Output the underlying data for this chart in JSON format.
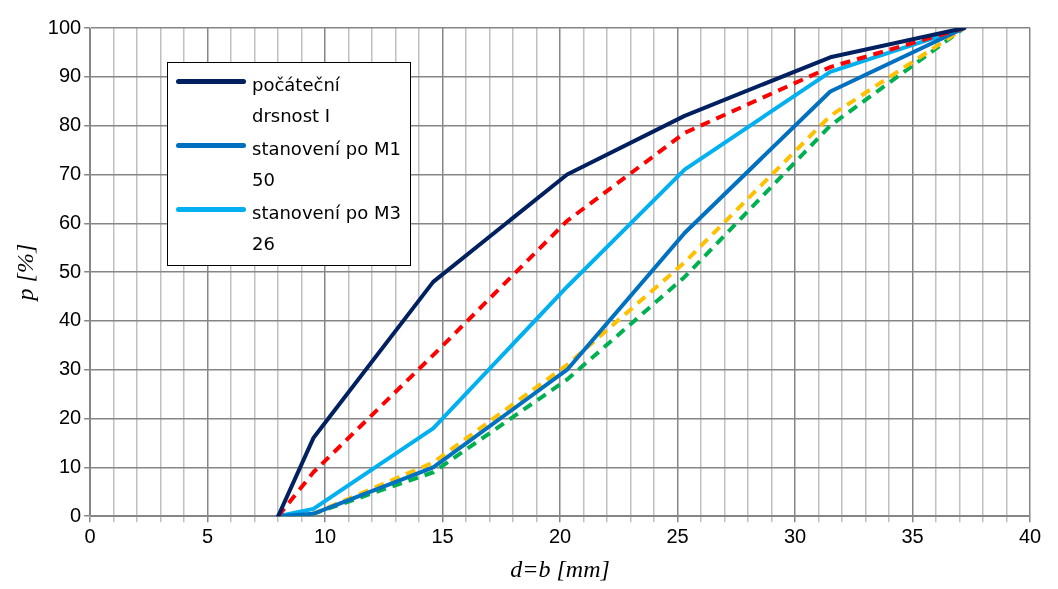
{
  "chart_data": {
    "type": "line",
    "xlabel": "d=b [mm]",
    "ylabel": "p [%]",
    "x": [
      8,
      9.5,
      14.6,
      20.3,
      25.3,
      31.5,
      37.2
    ],
    "series": [
      {
        "name": "počáteční drsnost I",
        "color": "#002060",
        "values": [
          0,
          16,
          48,
          70,
          82,
          94,
          100
        ]
      },
      {
        "color": "#ff0000",
        "line_style": "dashed",
        "values": [
          0,
          9,
          33,
          60.5,
          78.5,
          92,
          100
        ]
      },
      {
        "name": "stanovení po M1 50",
        "color": "#0070c0",
        "values": [
          0,
          0.5,
          10,
          30,
          58,
          87,
          100
        ]
      },
      {
        "name": "stanovení po M3 26",
        "color": "#00b0f0",
        "values": [
          0,
          1.5,
          18,
          47,
          71,
          91,
          100
        ]
      },
      {
        "color": "#ffc000",
        "line_style": "dashed",
        "values": [
          0,
          0.5,
          11,
          31,
          52,
          82,
          100
        ]
      },
      {
        "color": "#00b050",
        "line_style": "dashed",
        "values": [
          0,
          0.5,
          9,
          28,
          49,
          80,
          100
        ]
      }
    ],
    "xlim": [
      0,
      40
    ],
    "xticks": [
      0,
      {
        "value": 1,
        "label": null
      },
      {
        "value": 2,
        "label": null
      },
      {
        "value": 3,
        "label": null
      },
      {
        "value": 4,
        "label": null
      },
      5,
      {
        "value": 6,
        "label": null
      },
      {
        "value": 7,
        "label": null
      },
      {
        "value": 8,
        "label": null
      },
      {
        "value": 9,
        "label": null
      },
      10,
      {
        "value": 11,
        "label": null
      },
      {
        "value": 12,
        "label": null
      },
      {
        "value": 13,
        "label": null
      },
      {
        "value": 14,
        "label": null
      },
      15,
      {
        "value": 16,
        "label": null
      },
      {
        "value": 17,
        "label": null
      },
      {
        "value": 18,
        "label": null
      },
      {
        "value": 19,
        "label": null
      },
      20,
      {
        "value": 21,
        "label": null
      },
      {
        "value": 22,
        "label": null
      },
      {
        "value": 23,
        "label": null
      },
      {
        "value": 24,
        "label": null
      },
      25,
      {
        "value": 26,
        "label": null
      },
      {
        "value": 27,
        "label": null
      },
      {
        "value": 28,
        "label": null
      },
      {
        "value": 29,
        "label": null
      },
      30,
      {
        "value": 31,
        "label": null
      },
      {
        "value": 32,
        "label": null
      },
      {
        "value": 33,
        "label": null
      },
      {
        "value": 34,
        "label": null
      },
      35,
      {
        "value": 36,
        "label": null
      },
      {
        "value": 37,
        "label": null
      },
      {
        "value": 38,
        "label": null
      },
      {
        "value": 39,
        "label": null
      },
      40
    ],
    "ylim": [
      0,
      100
    ],
    "yticks": [
      0,
      10,
      20,
      30,
      40,
      50,
      60,
      70,
      80,
      90,
      100
    ],
    "grid": true,
    "legend": "top left",
    "marker": "none",
    "line_style": "solid"
  }
}
